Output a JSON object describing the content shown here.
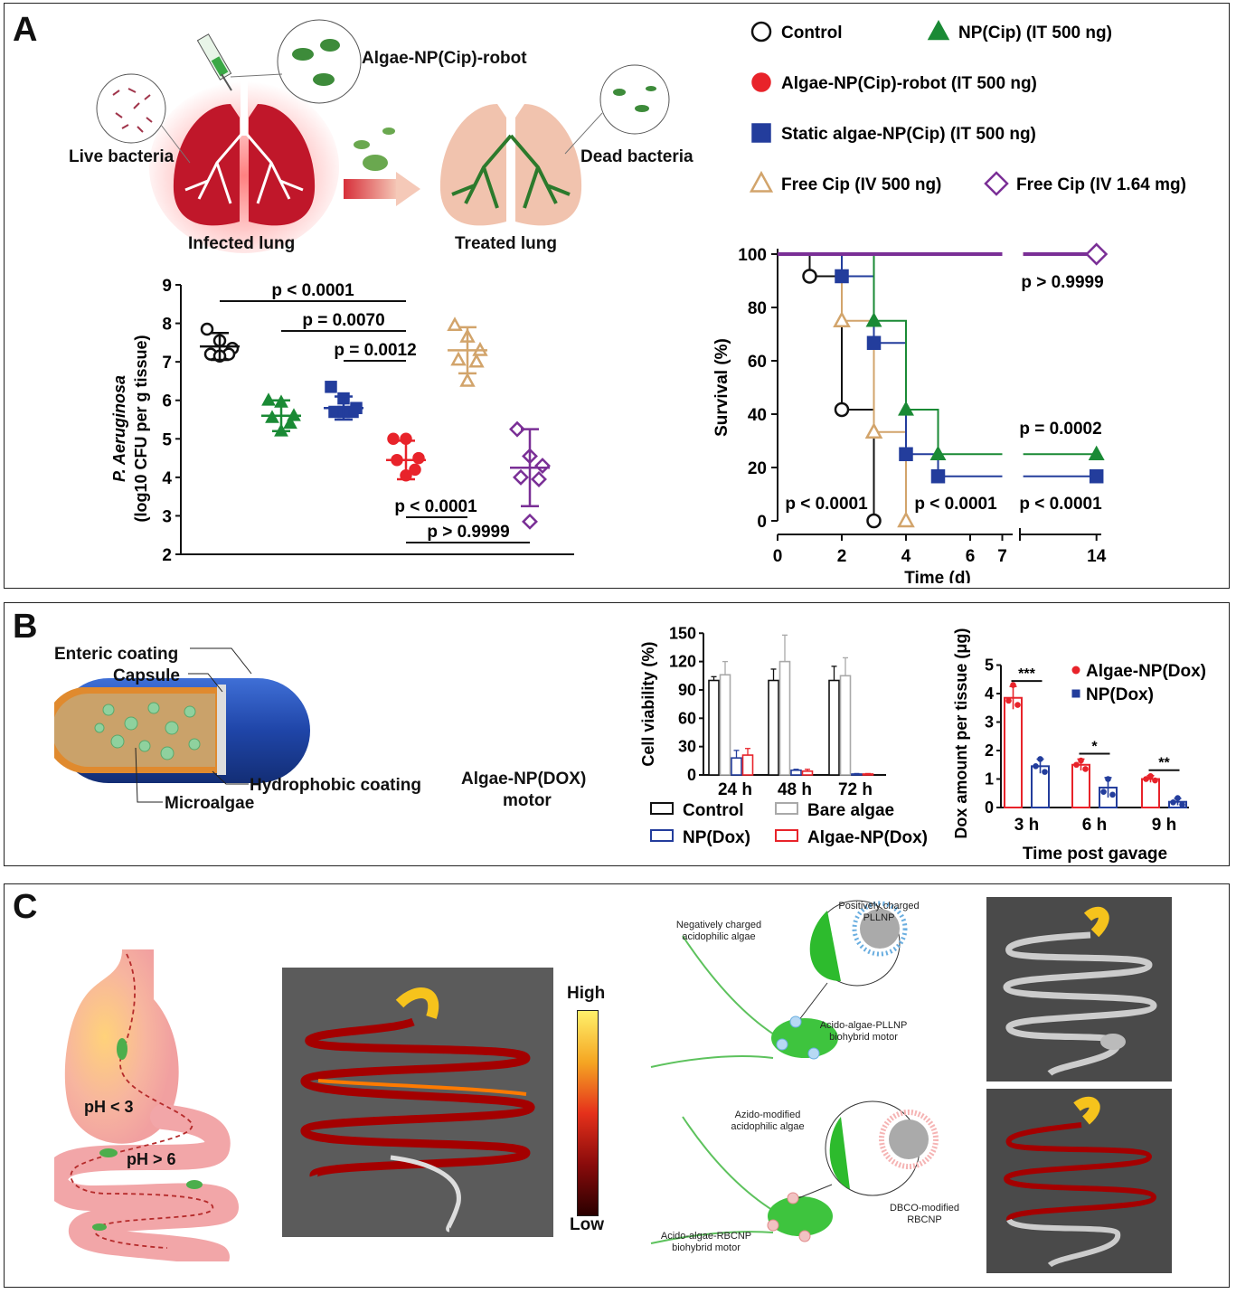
{
  "panels": {
    "a": "A",
    "b": "B",
    "c": "C"
  },
  "colors": {
    "control": "#111111",
    "algae_robot": "#e8232a",
    "np_cip": "#1a8a35",
    "static_algae": "#233d9c",
    "free_cip_iv500": "#d2a46b",
    "free_cip_iv164": "#7a2f96"
  },
  "panelA": {
    "illustration": {
      "algae_robot_label": "Algae-NP(Cip)-robot",
      "live_bacteria": "Live bacteria",
      "dead_bacteria": "Dead bacteria",
      "infected_lung": "Infected lung",
      "treated_lung": "Treated lung"
    }
  },
  "panelB": {
    "capsule": {
      "enteric": "Enteric coating",
      "capsule": "Capsule",
      "hydrophobic": "Hydrophobic coating",
      "microalgae": "Microalgae"
    },
    "motor_label": [
      "Algae-NP(DOX)",
      "motor"
    ]
  },
  "panelC": {
    "ph_low": "pH < 3",
    "ph_high": "pH > 6",
    "scale_high": "High",
    "scale_low": "Low",
    "neg_algae": [
      "Negatively charged",
      "acidophilic algae"
    ],
    "pos_pllnp": [
      "Positively charged",
      "PLLNP"
    ],
    "acido_pllnp": [
      "Acido-algae-PLLNP",
      "biohybrid motor"
    ],
    "azido_algae": [
      "Azido-modified",
      "acidophilic algae"
    ],
    "dbco_rbcnp": [
      "DBCO-modified",
      "RBCNP"
    ],
    "acido_rbcnp": [
      "Acido-algae-RBCNP",
      "biohybrid motor"
    ]
  },
  "chart_data": [
    {
      "id": "cfu",
      "type": "scatter",
      "ylabel": [
        "P. Aeruginosa",
        "(log10 CFU per g tissue)"
      ],
      "ylim": [
        2,
        9
      ],
      "yticks": [
        2,
        3,
        4,
        5,
        6,
        7,
        8,
        9
      ],
      "groups": [
        {
          "key": "control",
          "marker": "circle-open",
          "mean": 7.4,
          "err": 0.35,
          "points": [
            7.85,
            7.55,
            7.35,
            7.2,
            7.2,
            7.15
          ]
        },
        {
          "key": "np_cip",
          "marker": "triangle",
          "mean": 5.6,
          "err": 0.4,
          "points": [
            6.0,
            5.95,
            5.6,
            5.55,
            5.4,
            5.2
          ]
        },
        {
          "key": "static_algae",
          "marker": "square",
          "mean": 5.8,
          "err": 0.3,
          "points": [
            6.35,
            6.05,
            5.8,
            5.7,
            5.7,
            5.7
          ]
        },
        {
          "key": "algae_robot",
          "marker": "circle",
          "mean": 4.45,
          "err": 0.5,
          "points": [
            5.0,
            5.0,
            4.5,
            4.45,
            4.2,
            4.05
          ]
        },
        {
          "key": "free_cip_iv500",
          "marker": "triangle-open",
          "mean": 7.3,
          "err": 0.6,
          "points": [
            7.95,
            7.65,
            7.3,
            7.05,
            7.0,
            6.5
          ]
        },
        {
          "key": "free_cip_iv164",
          "marker": "diamond-open",
          "mean": 4.25,
          "err": 1.0,
          "points": [
            5.25,
            4.55,
            4.3,
            4.0,
            3.95,
            2.85
          ]
        }
      ],
      "annotations": [
        "p < 0.0001",
        "p = 0.0070",
        "p = 0.0012",
        "p < 0.0001",
        "p > 0.9999"
      ]
    },
    {
      "id": "survival",
      "type": "line",
      "xlabel": "Time (d)",
      "ylabel": "Survival (%)",
      "ylim": [
        0,
        100
      ],
      "yticks": [
        0,
        20,
        40,
        60,
        80,
        100
      ],
      "xticks": [
        0,
        2,
        4,
        6,
        7,
        14
      ],
      "legend": [
        {
          "key": "control",
          "label": "Control",
          "marker": "circle-open"
        },
        {
          "key": "np_cip",
          "label": "NP(Cip) (IT 500 ng)",
          "marker": "triangle"
        },
        {
          "key": "algae_robot",
          "label": "Algae-NP(Cip)-robot (IT 500 ng)",
          "marker": "circle"
        },
        {
          "key": "static_algae",
          "label": "Static algae-NP(Cip) (IT 500 ng)",
          "marker": "square"
        },
        {
          "key": "free_cip_iv500",
          "label": "Free Cip (IV 500 ng)",
          "marker": "triangle-open"
        },
        {
          "key": "free_cip_iv164",
          "label": "Free Cip (IV 1.64 mg)",
          "marker": "diamond-open"
        }
      ],
      "series": [
        {
          "key": "control",
          "steps": [
            [
              0,
              100
            ],
            [
              1,
              91.7
            ],
            [
              2,
              41.7
            ],
            [
              3,
              0
            ]
          ]
        },
        {
          "key": "free_cip_iv500",
          "steps": [
            [
              0,
              100
            ],
            [
              2,
              75
            ],
            [
              3,
              33.3
            ],
            [
              4,
              0
            ]
          ]
        },
        {
          "key": "static_algae",
          "steps": [
            [
              0,
              100
            ],
            [
              2,
              91.7
            ],
            [
              3,
              66.7
            ],
            [
              4,
              25
            ],
            [
              5,
              16.7
            ],
            [
              14,
              16.7
            ]
          ]
        },
        {
          "key": "np_cip",
          "steps": [
            [
              0,
              100
            ],
            [
              3,
              75
            ],
            [
              4,
              41.7
            ],
            [
              5,
              25
            ],
            [
              14,
              25
            ]
          ]
        },
        {
          "key": "algae_robot",
          "steps": [
            [
              0,
              100
            ],
            [
              14,
              100
            ]
          ]
        },
        {
          "key": "free_cip_iv164",
          "steps": [
            [
              0,
              100
            ],
            [
              14,
              100
            ]
          ]
        }
      ],
      "annotations": [
        "p > 0.9999",
        "p = 0.0002",
        "p < 0.0001",
        "p < 0.0001",
        "p < 0.0001"
      ]
    },
    {
      "id": "viability",
      "type": "bar",
      "ylabel": "Cell viability (%)",
      "ylim": [
        0,
        150
      ],
      "yticks": [
        0,
        30,
        60,
        90,
        120,
        150
      ],
      "categories": [
        "24 h",
        "48 h",
        "72 h"
      ],
      "series": [
        {
          "name": "Control",
          "color": "#111111",
          "values": [
            100,
            100,
            100
          ],
          "err": [
            4,
            12,
            15
          ]
        },
        {
          "name": "Bare algae",
          "color": "#a9a9a9",
          "values": [
            106,
            120,
            105
          ],
          "err": [
            14,
            28,
            19
          ]
        },
        {
          "name": "NP(Dox)",
          "color": "#233d9c",
          "values": [
            18,
            5,
            1
          ],
          "err": [
            8,
            1,
            0.5
          ]
        },
        {
          "name": "Algae-NP(Dox)",
          "color": "#e8232a",
          "values": [
            21,
            4,
            1
          ],
          "err": [
            7,
            2,
            0.5
          ]
        }
      ]
    },
    {
      "id": "dox",
      "type": "bar",
      "xlabel": "Time post gavage",
      "ylabel": "Dox amount per tissue (μg)",
      "ylim": [
        0,
        5
      ],
      "yticks": [
        0,
        1,
        2,
        3,
        4,
        5
      ],
      "categories": [
        "3 h",
        "6 h",
        "9 h"
      ],
      "series": [
        {
          "name": "Algae-NP(Dox)",
          "color": "#e8232a",
          "values": [
            3.85,
            1.5,
            1.0
          ],
          "err": [
            0.4,
            0.2,
            0.12
          ],
          "points": [
            [
              4.3,
              3.75,
              3.6
            ],
            [
              1.65,
              1.5,
              1.35
            ],
            [
              1.1,
              1.0,
              0.95
            ]
          ]
        },
        {
          "name": "NP(Dox)",
          "color": "#233d9c",
          "values": [
            1.45,
            0.7,
            0.2
          ],
          "err": [
            0.25,
            0.35,
            0.12
          ],
          "points": [
            [
              1.7,
              1.45,
              1.25
            ],
            [
              1.0,
              0.55,
              0.45
            ],
            [
              0.33,
              0.18,
              0.1
            ]
          ]
        }
      ],
      "significance": [
        "***",
        "*",
        "**"
      ]
    }
  ]
}
